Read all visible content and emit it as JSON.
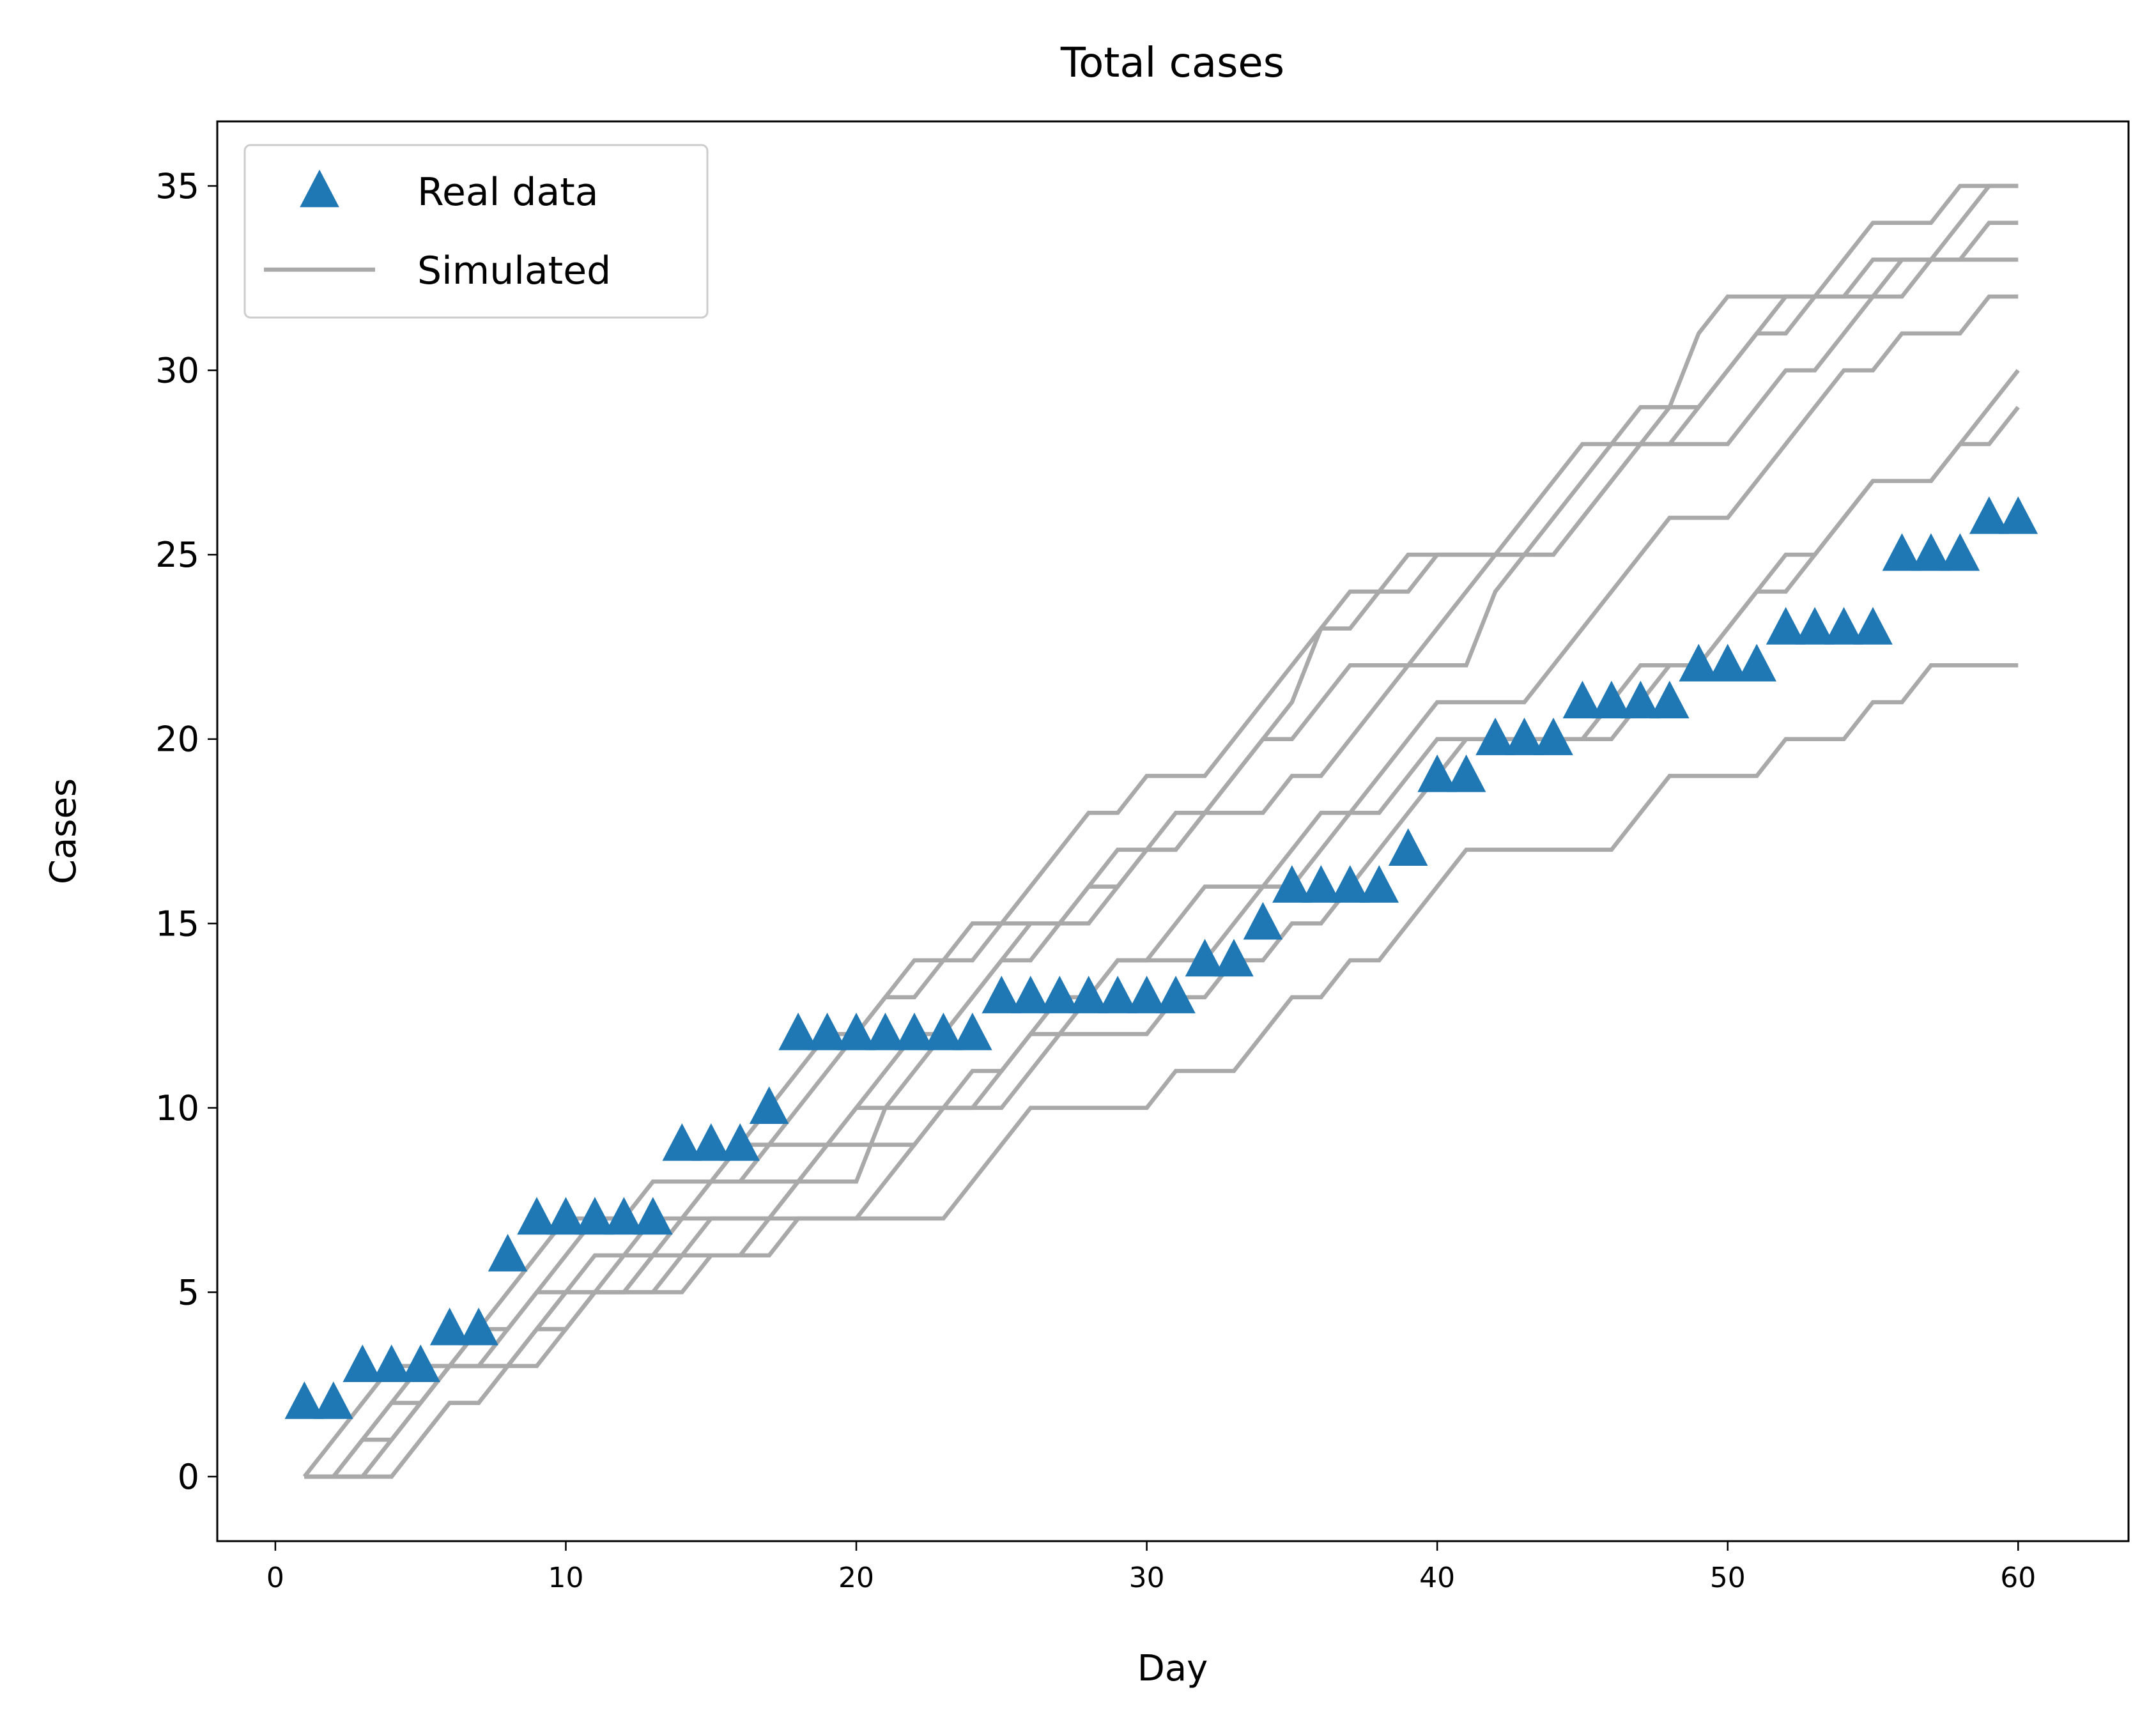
{
  "chart_data": {
    "type": "line",
    "title": "Total cases",
    "x_label": "Day",
    "y_label": "Cases",
    "x": [
      1,
      2,
      3,
      4,
      5,
      6,
      7,
      8,
      9,
      10,
      11,
      12,
      13,
      14,
      15,
      16,
      17,
      18,
      19,
      20,
      21,
      22,
      23,
      24,
      25,
      26,
      27,
      28,
      29,
      30,
      31,
      32,
      33,
      34,
      35,
      36,
      37,
      38,
      39,
      40,
      41,
      42,
      43,
      44,
      45,
      46,
      47,
      48,
      49,
      50,
      51,
      52,
      53,
      54,
      55,
      56,
      57,
      58,
      59,
      60
    ],
    "xlim": [
      -2,
      63.8
    ],
    "ylim": [
      -1.75,
      36.75
    ],
    "xticks": [
      0,
      10,
      20,
      30,
      40,
      50,
      60
    ],
    "yticks": [
      0,
      5,
      10,
      15,
      20,
      25,
      30,
      35
    ],
    "legend": "upper left",
    "series": [
      {
        "name": "Real data",
        "color": "#1f77b4",
        "style": "marker",
        "values": [
          2,
          2,
          3,
          3,
          3,
          4,
          4,
          6,
          7,
          7,
          7,
          7,
          7,
          9,
          9,
          9,
          10,
          12,
          12,
          12,
          12,
          12,
          12,
          12,
          13,
          13,
          13,
          13,
          13,
          13,
          13,
          14,
          14,
          15,
          16,
          16,
          16,
          16,
          17,
          19,
          19,
          20,
          20,
          20,
          21,
          21,
          21,
          21,
          22,
          22,
          22,
          23,
          23,
          23,
          23,
          25,
          25,
          25,
          26,
          26
        ]
      },
      {
        "name": "Simulated",
        "color": "#a9a9a9",
        "style": "line",
        "runs": [
          [
            0,
            0,
            1,
            2,
            3,
            3,
            4,
            5,
            6,
            7,
            7,
            7,
            8,
            8,
            8,
            9,
            10,
            11,
            12,
            12,
            13,
            14,
            14,
            15,
            15,
            16,
            17,
            18,
            18,
            19,
            19,
            19,
            20,
            21,
            22,
            23,
            24,
            24,
            24,
            25,
            25,
            25,
            26,
            27,
            28,
            28,
            29,
            29,
            31,
            32,
            32,
            32,
            32,
            32,
            32,
            32,
            33,
            34,
            35,
            35
          ],
          [
            0,
            1,
            2,
            3,
            3,
            3,
            4,
            4,
            5,
            6,
            7,
            7,
            8,
            8,
            8,
            8,
            9,
            10,
            11,
            12,
            13,
            13,
            14,
            14,
            15,
            15,
            15,
            16,
            16,
            17,
            17,
            18,
            19,
            20,
            21,
            23,
            23,
            24,
            25,
            25,
            25,
            25,
            25,
            25,
            26,
            27,
            28,
            28,
            29,
            30,
            31,
            31,
            32,
            33,
            34,
            34,
            34,
            35,
            35,
            35
          ],
          [
            0,
            0,
            0,
            1,
            2,
            3,
            3,
            3,
            4,
            5,
            5,
            5,
            6,
            7,
            8,
            8,
            8,
            8,
            8,
            8,
            10,
            11,
            12,
            13,
            14,
            15,
            15,
            15,
            16,
            17,
            17,
            18,
            19,
            20,
            20,
            21,
            22,
            22,
            22,
            22,
            22,
            24,
            25,
            26,
            27,
            28,
            28,
            29,
            29,
            30,
            31,
            32,
            32,
            32,
            33,
            33,
            33,
            33,
            34,
            34
          ],
          [
            0,
            0,
            1,
            1,
            2,
            3,
            3,
            4,
            5,
            5,
            6,
            6,
            7,
            7,
            7,
            7,
            7,
            8,
            9,
            10,
            11,
            12,
            12,
            13,
            14,
            14,
            15,
            16,
            17,
            17,
            18,
            18,
            18,
            18,
            19,
            19,
            20,
            21,
            22,
            23,
            24,
            25,
            25,
            25,
            26,
            27,
            28,
            28,
            28,
            28,
            29,
            30,
            30,
            31,
            32,
            33,
            33,
            33,
            33,
            33
          ],
          [
            0,
            0,
            0,
            1,
            2,
            3,
            3,
            3,
            3,
            4,
            5,
            6,
            6,
            7,
            8,
            9,
            9,
            9,
            9,
            10,
            10,
            10,
            10,
            10,
            10,
            11,
            12,
            13,
            14,
            14,
            14,
            14,
            15,
            16,
            17,
            18,
            18,
            19,
            20,
            21,
            21,
            21,
            21,
            22,
            23,
            24,
            25,
            26,
            26,
            26,
            27,
            28,
            29,
            30,
            30,
            31,
            31,
            31,
            32,
            32
          ],
          [
            0,
            0,
            1,
            2,
            2,
            3,
            3,
            3,
            4,
            4,
            5,
            5,
            5,
            6,
            7,
            7,
            7,
            7,
            7,
            7,
            8,
            9,
            10,
            10,
            11,
            12,
            12,
            12,
            12,
            12,
            13,
            13,
            14,
            14,
            15,
            15,
            16,
            17,
            18,
            19,
            20,
            20,
            20,
            20,
            20,
            20,
            21,
            22,
            22,
            23,
            24,
            25,
            25,
            26,
            27,
            27,
            27,
            28,
            29,
            30
          ],
          [
            0,
            0,
            0,
            0,
            1,
            2,
            2,
            3,
            4,
            4,
            5,
            5,
            6,
            6,
            6,
            6,
            7,
            8,
            9,
            9,
            9,
            9,
            10,
            11,
            11,
            12,
            13,
            13,
            14,
            14,
            15,
            16,
            16,
            16,
            16,
            17,
            18,
            18,
            19,
            20,
            20,
            20,
            20,
            20,
            20,
            21,
            22,
            22,
            22,
            23,
            24,
            24,
            25,
            26,
            27,
            27,
            27,
            28,
            28,
            29
          ],
          [
            0,
            0,
            0,
            0,
            1,
            2,
            2,
            3,
            4,
            5,
            5,
            5,
            5,
            5,
            6,
            6,
            6,
            7,
            7,
            7,
            7,
            7,
            7,
            8,
            9,
            10,
            10,
            10,
            10,
            10,
            11,
            11,
            11,
            12,
            13,
            13,
            14,
            14,
            15,
            16,
            17,
            17,
            17,
            17,
            17,
            17,
            18,
            19,
            19,
            19,
            19,
            20,
            20,
            20,
            21,
            21,
            22,
            22,
            22,
            22
          ]
        ]
      }
    ]
  }
}
